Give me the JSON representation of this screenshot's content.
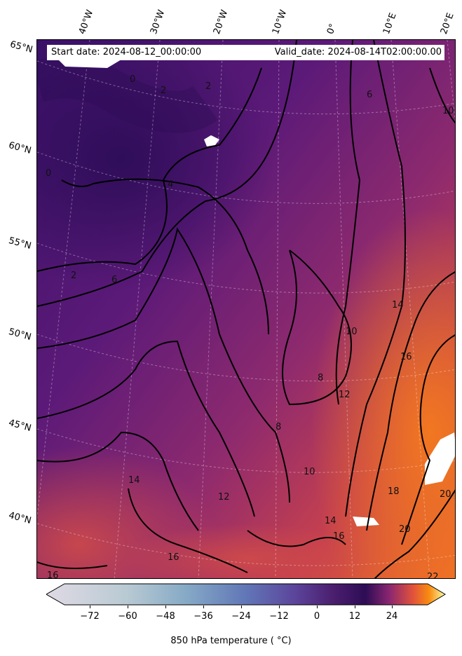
{
  "header": {
    "start_date": "Start date: 2024-08-12_00:00:00",
    "valid_date": "Valid_date: 2024-08-14T02:00:00.00"
  },
  "longitude_labels": [
    "40°W",
    "30°W",
    "20°W",
    "10°W",
    "0°",
    "10°E",
    "20°E"
  ],
  "latitude_labels": [
    "65°N",
    "60°N",
    "55°N",
    "50°N",
    "45°N",
    "40°N"
  ],
  "contour_labels": [
    "0",
    "2",
    "0",
    "4",
    "2",
    "6",
    "8",
    "10",
    "12",
    "14",
    "12",
    "10",
    "8",
    "16",
    "14",
    "16",
    "18",
    "20",
    "20",
    "22",
    "16",
    "14",
    "16",
    "6",
    "2",
    "12",
    "10"
  ],
  "colorbar": {
    "label": "850 hPa temperature ( °C)",
    "ticks": [
      "−72",
      "−60",
      "−48",
      "−36",
      "−24",
      "−12",
      "0",
      "12",
      "24"
    ],
    "range": [
      -80,
      36
    ],
    "extend": "both"
  },
  "colors": {
    "cold": "#e0dae4",
    "mid_blue": "#6a88bd",
    "violet": "#5b3f96",
    "zero": "#2a0c57",
    "warm": "#b5365a",
    "orange": "#f2781f",
    "hot": "#f9fca6"
  }
}
